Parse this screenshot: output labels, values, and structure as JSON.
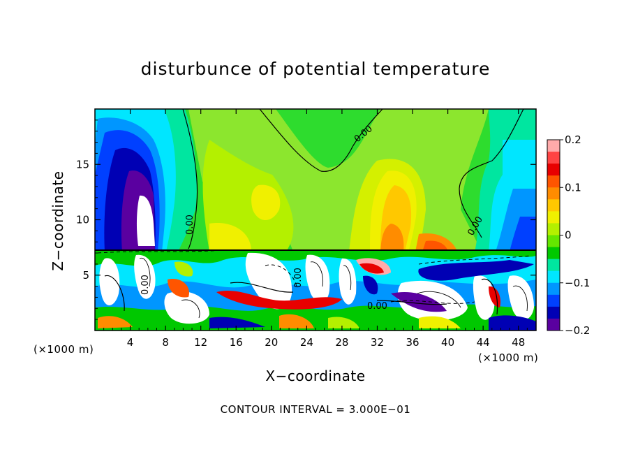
{
  "chart_data": {
    "type": "heatmap",
    "title": "disturbunce of potential temperature",
    "xlabel": "X−coordinate",
    "ylabel": "Z−coordinate",
    "x_unit_label": "(×1000 m)",
    "footer": "CONTOUR INTERVAL = 3.000E−01",
    "xlim": [
      0,
      50
    ],
    "ylim": [
      0,
      20
    ],
    "x_ticks": [
      4,
      8,
      12,
      16,
      20,
      24,
      28,
      32,
      36,
      40,
      44,
      48
    ],
    "x_tick_labels": [
      "4",
      "8",
      "12",
      "16",
      "20",
      "24",
      "28",
      "32",
      "36",
      "40",
      "44",
      "48"
    ],
    "y_ticks": [
      5,
      10,
      15
    ],
    "y_tick_labels": [
      "5",
      "10",
      "15"
    ],
    "colorbar": {
      "min": -0.2,
      "max": 0.2,
      "ticks": [
        0.2,
        0.1,
        0,
        -0.1,
        -0.2
      ],
      "tick_labels": [
        "0.2",
        "0.1",
        "0",
        "−0.1",
        "−0.2"
      ],
      "colors": [
        "#ffaaaa",
        "#ff4444",
        "#e80000",
        "#ff5500",
        "#ff8c00",
        "#ffc800",
        "#f0f000",
        "#b4f000",
        "#64e600",
        "#00c800",
        "#00e6a0",
        "#00e6ff",
        "#0096ff",
        "#0040ff",
        "#0000b4",
        "#5a00a0"
      ]
    },
    "contour_labels": [
      "0.00",
      "0.00",
      "0.00",
      "0.00",
      "0.00",
      "0.00"
    ],
    "gridlines": false,
    "legend": "colorbar-right"
  }
}
